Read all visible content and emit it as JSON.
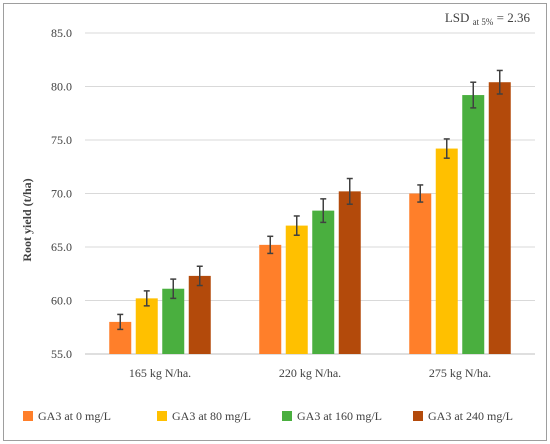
{
  "chart_data": {
    "type": "bar",
    "title": "",
    "annotation": {
      "prefix": "LSD",
      "subscript": "at 5%",
      "suffix": "= 2.36"
    },
    "xlabel": "",
    "ylabel": "Root yield (t/ha)",
    "categories": [
      "165 kg N/ha.",
      "220 kg N/ha.",
      "275 kg N/ha."
    ],
    "ylim": [
      55.0,
      85.0
    ],
    "yticks": [
      "55.0",
      "60.0",
      "65.0",
      "70.0",
      "75.0",
      "80.0",
      "85.0"
    ],
    "grid": true,
    "legend_position": "bottom",
    "series": [
      {
        "name": "GA3 at 0 mg/L",
        "color": "#ff7f2a",
        "values": [
          58.0,
          65.2,
          70.0
        ],
        "errors": [
          0.7,
          0.8,
          0.8
        ]
      },
      {
        "name": "GA3 at 80 mg/L",
        "color": "#ffc000",
        "values": [
          60.2,
          67.0,
          74.2
        ],
        "errors": [
          0.7,
          0.9,
          0.9
        ]
      },
      {
        "name": "GA3 at 160 mg/L",
        "color": "#4aaf3f",
        "values": [
          61.1,
          68.4,
          79.2
        ],
        "errors": [
          0.9,
          1.1,
          1.2
        ]
      },
      {
        "name": "GA3 at 240 mg/L",
        "color": "#b34a0b",
        "values": [
          62.3,
          70.2,
          80.4
        ],
        "errors": [
          0.9,
          1.2,
          1.1
        ]
      }
    ]
  }
}
